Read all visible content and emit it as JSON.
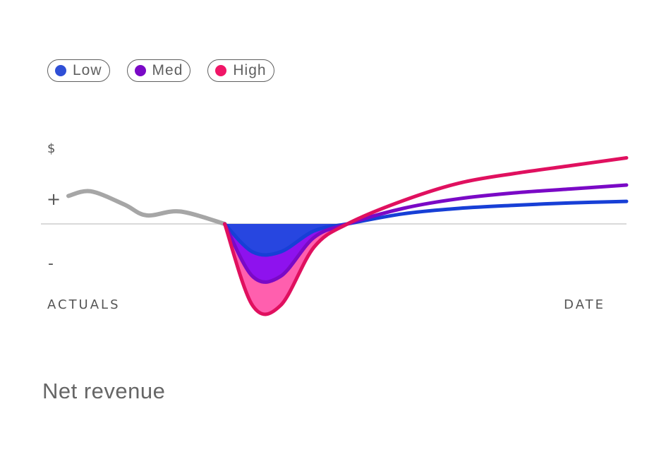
{
  "legend": {
    "items": [
      {
        "label": "Low",
        "color": "#2f4fd6"
      },
      {
        "label": "Med",
        "color": "#7a09c6"
      },
      {
        "label": "High",
        "color": "#f01667"
      }
    ]
  },
  "chart_data": {
    "type": "line",
    "title": "",
    "xlabel_left": "ACTUALS",
    "xlabel_right": "DATE",
    "ylabels": {
      "top": "$",
      "positive": "+",
      "negative": "-"
    },
    "baseline": 0,
    "grid": false,
    "legend_position": "top-left",
    "series": [
      {
        "name": "Actuals",
        "color": "#a6a6a6",
        "x": [
          0,
          0.04,
          0.1,
          0.14,
          0.2,
          0.28
        ],
        "y": [
          0.72,
          0.84,
          0.5,
          0.22,
          0.32,
          0.0
        ]
      },
      {
        "name": "Low",
        "color": "#173fd6",
        "x": [
          0.28,
          0.33,
          0.38,
          0.44,
          0.5,
          0.6,
          0.7,
          0.8,
          0.9,
          1.0
        ],
        "y": [
          0.0,
          -0.72,
          -0.72,
          -0.18,
          0.0,
          0.26,
          0.4,
          0.48,
          0.54,
          0.58
        ]
      },
      {
        "name": "Med",
        "color": "#7a09c6",
        "x": [
          0.28,
          0.33,
          0.38,
          0.44,
          0.5,
          0.6,
          0.7,
          0.8,
          0.9,
          1.0
        ],
        "y": [
          0.0,
          -1.35,
          -1.35,
          -0.35,
          0.0,
          0.4,
          0.65,
          0.8,
          0.9,
          1.0
        ]
      },
      {
        "name": "High",
        "color": "#e0105f",
        "x": [
          0.28,
          0.33,
          0.38,
          0.44,
          0.5,
          0.6,
          0.7,
          0.8,
          0.9,
          1.0
        ],
        "y": [
          0.0,
          -2.1,
          -2.1,
          -0.6,
          0.0,
          0.6,
          1.05,
          1.3,
          1.5,
          1.7
        ]
      }
    ],
    "fills": {
      "low": "#2746e0",
      "med": "#8e12ee",
      "high": "#ff5fae"
    }
  },
  "caption": "Net revenue"
}
